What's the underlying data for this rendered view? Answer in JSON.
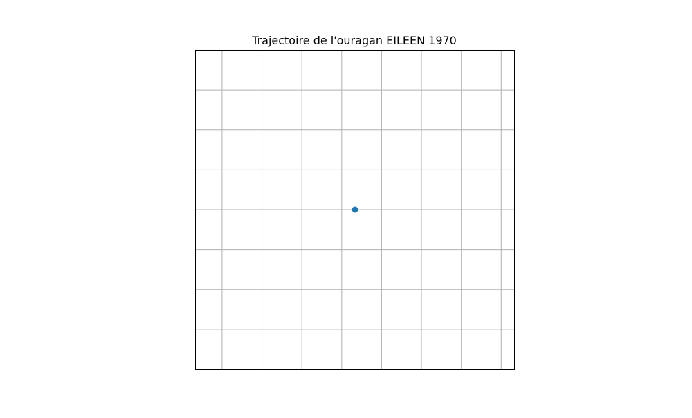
{
  "chart_data": {
    "type": "scatter",
    "title": "Trajectoire de l'ouragan EILEEN 1970",
    "xlabel": "",
    "ylabel": "",
    "xlim": [
      -0.06,
      0.06
    ],
    "ylim": [
      -0.06,
      0.06
    ],
    "grid": true,
    "x_gridlines": [
      -0.05,
      -0.035,
      -0.02,
      -0.005,
      0.01,
      0.025,
      0.04,
      0.055
    ],
    "y_gridlines": [
      -0.045,
      -0.03,
      -0.015,
      0.0,
      0.015,
      0.03,
      0.045
    ],
    "series": [
      {
        "x": [
          0.0
        ],
        "y": [
          0.0
        ]
      }
    ],
    "colors": {
      "point": "#1f77b4",
      "grid": "#b0b0b0",
      "frame": "#000000",
      "title": "#000000"
    }
  }
}
